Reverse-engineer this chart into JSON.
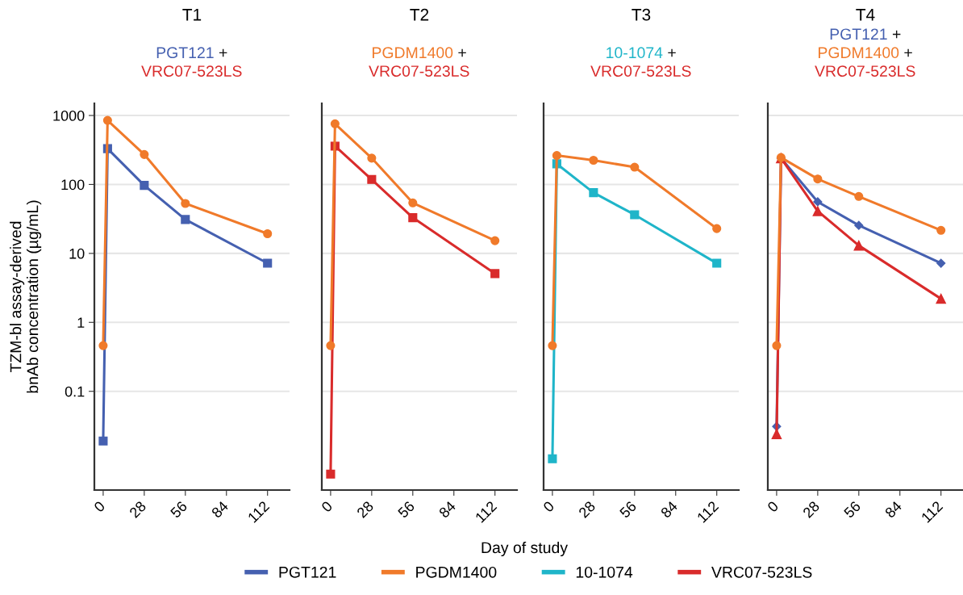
{
  "chart_data": [
    {
      "type": "line",
      "title": "T1",
      "subtitle": "PGT121 +\nVRC07-523LS",
      "ylabel": "TZM-bl assay-derived\nbnAb concentration (µg/mL)",
      "log": "y",
      "grid": "y",
      "legend": "bottom",
      "xlim": [
        -6,
        127
      ],
      "xticks": [
        0,
        28,
        56,
        84,
        112
      ],
      "ylim": [
        0.0037,
        1500
      ],
      "yticks": [
        0.1,
        1,
        10,
        100,
        1000
      ],
      "series": [
        {
          "name": "PGT121",
          "color": "#4560b0",
          "marker": "square",
          "x": [
            0,
            3,
            28,
            56,
            112
          ],
          "values": [
            0.019,
            330,
            97,
            31,
            7.2
          ]
        },
        {
          "name": "PGDM1400",
          "color": "#f07a2a",
          "marker": "circle",
          "x": [
            0,
            3,
            28,
            56,
            112
          ],
          "values": [
            0.46,
            850,
            272,
            53,
            19.3
          ]
        }
      ]
    },
    {
      "type": "line",
      "title": "T2",
      "subtitle": "PGDM1400 +\nVRC07-523LS",
      "annotations": [
        "Day of study"
      ],
      "log": "y",
      "grid": "y",
      "tick_labels": "x",
      "xlim": [
        -6,
        127
      ],
      "xticks": [
        0,
        28,
        56,
        84,
        112
      ],
      "ylim": [
        0.0037,
        1500
      ],
      "yticks": [
        0.1,
        1,
        10,
        100,
        1000
      ],
      "series": [
        {
          "color": "#d92b2b",
          "marker": "square",
          "x": [
            0,
            3,
            28,
            56,
            112
          ],
          "values": [
            0.0063,
            360,
            118,
            33,
            5.1
          ]
        },
        {
          "color": "#f07a2a",
          "marker": "circle",
          "x": [
            0,
            3,
            28,
            56,
            112
          ],
          "values": [
            0.46,
            757,
            241,
            54,
            15.3
          ]
        }
      ]
    },
    {
      "type": "line",
      "title": "T3",
      "subtitle": "10-1074 +\nVRC07-523LS",
      "log": "y",
      "grid": "y",
      "tick_labels": "x",
      "xlim": [
        -6,
        127
      ],
      "xticks": [
        0,
        28,
        56,
        84,
        112
      ],
      "ylim": [
        0.0037,
        1500
      ],
      "yticks": [
        0.1,
        1,
        10,
        100,
        1000
      ],
      "series": [
        {
          "name": "10-1074",
          "color": "#1fb5c9",
          "marker": "square",
          "x": [
            0,
            3,
            28,
            56,
            112
          ],
          "values": [
            0.0105,
            199,
            76,
            36.4,
            7.2
          ]
        },
        {
          "color": "#f07a2a",
          "marker": "circle",
          "x": [
            0,
            3,
            28,
            56,
            112
          ],
          "values": [
            0.46,
            263,
            224,
            178,
            22.9
          ]
        }
      ]
    },
    {
      "type": "line",
      "title": "T4",
      "subtitle": "PGT121 +\nPGDM1400 +\nVRC07-523LS",
      "log": "y",
      "grid": "y",
      "tick_labels": "x",
      "xlim": [
        -6,
        127
      ],
      "xticks": [
        0,
        28,
        56,
        84,
        112
      ],
      "ylim": [
        0.0037,
        1500
      ],
      "yticks": [
        0.1,
        1,
        10,
        100,
        1000
      ],
      "series": [
        {
          "color": "#4560b0",
          "marker": "diamond",
          "x": [
            0,
            3,
            28,
            56,
            112
          ],
          "values": [
            0.031,
            240,
            56,
            25.5,
            7.2
          ]
        },
        {
          "name": "VRC07-523LS",
          "color": "#d92b2b",
          "marker": "triangle",
          "x": [
            0,
            3,
            28,
            56,
            112
          ],
          "values": [
            0.024,
            240,
            41,
            13,
            2.2
          ]
        },
        {
          "color": "#f07a2a",
          "marker": "circle",
          "x": [
            0,
            3,
            28,
            56,
            112
          ],
          "values": [
            0.46,
            246,
            120,
            67,
            21.6
          ]
        }
      ]
    }
  ]
}
